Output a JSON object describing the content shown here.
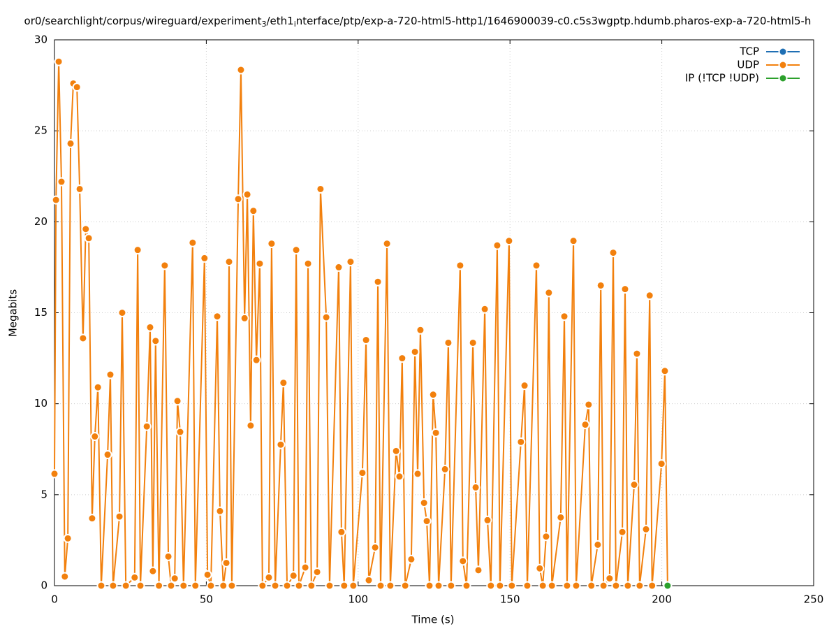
{
  "chart_data": {
    "type": "line",
    "title_parts": [
      "or0/searchlight/corpus/wireguard/experiment",
      "3",
      "/eth1",
      "i",
      "nterface/ptp/exp-a-720-html5-http1/1646900039-c0.c5s3wgptp.hdumb.pharos-exp-a-720-html5-h"
    ],
    "x_label": "Time (s)",
    "y_label": "Megabits",
    "xlim": [
      0,
      250
    ],
    "xticks": [
      0,
      50,
      100,
      150,
      200,
      250
    ],
    "ylim": [
      0,
      30
    ],
    "yticks": [
      0,
      5,
      10,
      15,
      20,
      25,
      30
    ],
    "grid": true,
    "legend": "top-right",
    "series": [
      {
        "name": "TCP",
        "color": "#1f6fb4",
        "x": [],
        "values": []
      },
      {
        "name": "UDP",
        "color": "#f2800d",
        "x": [
          0,
          0.5,
          1.4,
          2.3,
          3.4,
          4.4,
          5.3,
          6.2,
          7.4,
          8.3,
          9.4,
          10.3,
          11.3,
          12.4,
          13.3,
          14.3,
          15.4,
          17.5,
          18.4,
          19.3,
          21.4,
          22.3,
          23.5,
          26.4,
          27.4,
          28.3,
          30.4,
          31.5,
          32.4,
          33.3,
          34.4,
          36.3,
          37.5,
          38.4,
          39.6,
          40.5,
          41.4,
          42.5,
          45.5,
          46.4,
          49.4,
          50.4,
          51.5,
          53.6,
          54.5,
          55.6,
          56.6,
          57.5,
          58.4,
          60.5,
          61.4,
          62.6,
          63.5,
          64.6,
          65.5,
          66.5,
          67.6,
          68.5,
          70.6,
          71.5,
          72.7,
          74.5,
          75.4,
          76.6,
          78.7,
          79.6,
          80.5,
          82.6,
          83.5,
          84.6,
          86.5,
          87.6,
          89.5,
          90.6,
          93.6,
          94.5,
          95.4,
          97.5,
          98.4,
          101.4,
          102.6,
          103.5,
          105.6,
          106.5,
          107.4,
          109.5,
          110.6,
          112.5,
          113.6,
          114.5,
          115.5,
          117.5,
          118.7,
          119.6,
          120.5,
          121.7,
          122.6,
          123.5,
          124.7,
          125.6,
          126.5,
          128.6,
          129.7,
          130.6,
          133.6,
          134.5,
          135.7,
          137.8,
          138.7,
          139.6,
          141.7,
          142.6,
          143.7,
          145.8,
          146.7,
          149.7,
          150.6,
          153.6,
          154.8,
          155.7,
          158.7,
          159.8,
          160.8,
          161.9,
          162.8,
          163.8,
          166.7,
          167.9,
          168.8,
          170.9,
          171.8,
          174.8,
          175.9,
          176.8,
          178.9,
          179.9,
          180.8,
          182.8,
          184.0,
          184.9,
          187.0,
          187.9,
          188.8,
          190.9,
          191.8,
          192.7,
          194.8,
          196.0,
          196.8,
          199.9,
          201.0,
          201.9
        ],
        "values": [
          6.15,
          21.2,
          28.8,
          22.2,
          0.5,
          2.6,
          24.3,
          27.6,
          27.4,
          21.8,
          13.6,
          19.6,
          19.1,
          3.7,
          8.2,
          10.9,
          0,
          7.2,
          11.6,
          0,
          3.8,
          15.0,
          0,
          0.45,
          18.45,
          0,
          8.75,
          14.2,
          0.8,
          13.45,
          0,
          17.6,
          1.6,
          0,
          0.4,
          10.15,
          8.45,
          0,
          18.85,
          0,
          18.0,
          0.6,
          0,
          14.8,
          4.1,
          0,
          1.25,
          17.8,
          0,
          21.25,
          28.35,
          14.7,
          21.5,
          8.8,
          20.6,
          12.4,
          17.7,
          0,
          0.45,
          18.8,
          0,
          7.75,
          11.15,
          0,
          0.55,
          18.45,
          0,
          1.0,
          17.7,
          0,
          0.75,
          21.8,
          14.75,
          0,
          17.5,
          2.95,
          0,
          17.8,
          0,
          6.2,
          13.5,
          0.3,
          2.1,
          16.7,
          0,
          18.8,
          0,
          7.4,
          6.0,
          12.5,
          0,
          1.45,
          12.85,
          6.15,
          14.05,
          4.55,
          3.55,
          0,
          10.5,
          8.4,
          0,
          6.4,
          13.35,
          0,
          17.6,
          1.35,
          0,
          13.35,
          5.4,
          0.85,
          15.2,
          3.6,
          0,
          18.7,
          0,
          18.95,
          0,
          7.9,
          11.0,
          0,
          17.6,
          0.95,
          0,
          2.7,
          16.1,
          0,
          3.75,
          14.8,
          0,
          18.95,
          0,
          8.85,
          9.95,
          0,
          2.25,
          16.5,
          0,
          0.4,
          18.3,
          0,
          2.95,
          16.3,
          0,
          5.55,
          12.75,
          0,
          3.1,
          15.95,
          0,
          6.7,
          11.8,
          0
        ]
      },
      {
        "name": "IP (!TCP  !UDP)",
        "color": "#2ca02c",
        "x": [
          201.9
        ],
        "values": [
          0
        ]
      }
    ]
  }
}
